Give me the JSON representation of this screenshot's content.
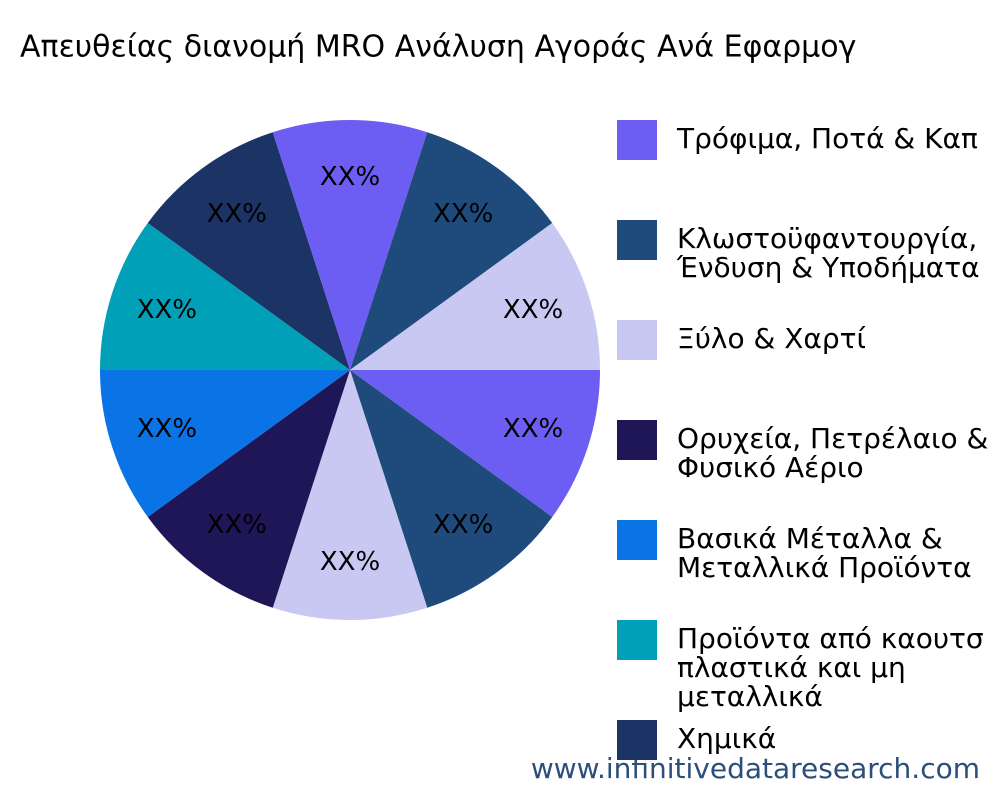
{
  "chart_data": {
    "type": "pie",
    "title": "Απευθείας διανομή MRO Ανάλυση Αγοράς Ανά Εφαρμογ",
    "categories": [
      "Τρόφιμα, Ποτά & Καπ",
      "Κλωστοϋφαντουργία,\nΈνδυση & Υποδήματα",
      "Ξύλο & Χαρτί",
      "Ορυχεία, Πετρέλαιο &\nΦυσικό Αέριο",
      "Βασικά Μέταλλα &\nΜεταλλικά Προϊόντα",
      "Προϊόντα από καουτσ\nπλαστικά και μη\nμεταλλικά",
      "Χημικά",
      null,
      null,
      null
    ],
    "values": [
      10,
      10,
      10,
      10,
      10,
      10,
      10,
      10,
      10,
      10
    ],
    "value_labels": [
      "XX%",
      "XX%",
      "XX%",
      "XX%",
      "XX%",
      "XX%",
      "XX%",
      "XX%",
      "XX%",
      "XX%"
    ],
    "colors": [
      "#6c5ef2",
      "#1f4b7c",
      "#c8c8f2",
      "#1e1656",
      "#0a74e6",
      "#00a0b8",
      "#1c3366",
      "#6c5ef2",
      "#1f4b7c",
      "#c8c8f2"
    ],
    "clockwise": true,
    "legend": "right",
    "watermark": "www.infinitivedataresearch.com"
  }
}
